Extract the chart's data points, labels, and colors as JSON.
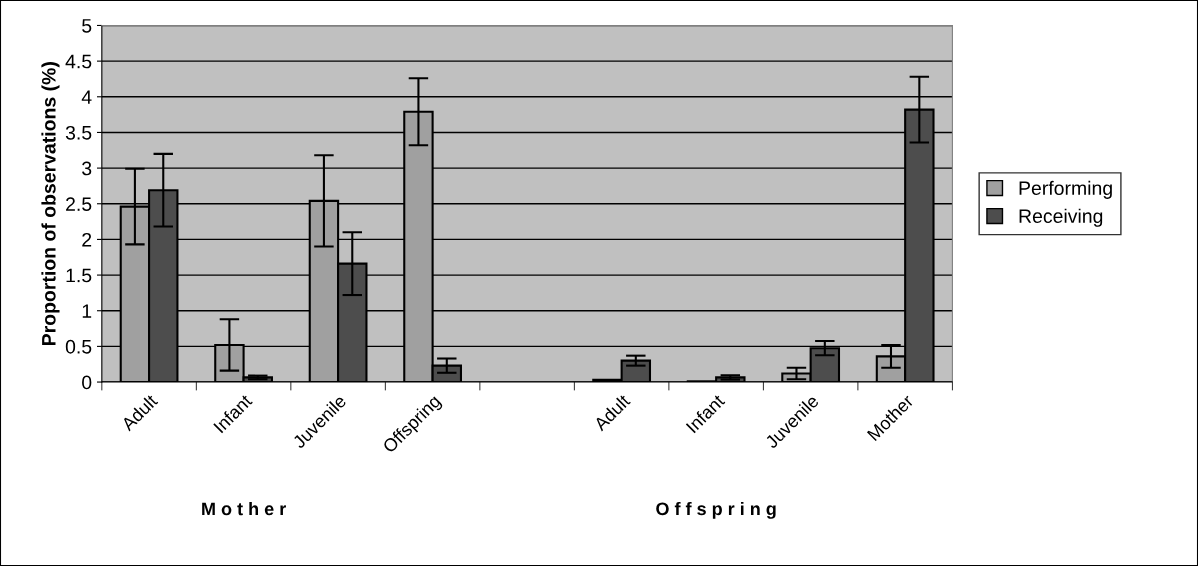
{
  "chart_data": {
    "type": "bar",
    "ylabel": "Proportion of observations (%)",
    "categories": [
      "Adult",
      "Infant",
      "Juvenile",
      "Offspring",
      null,
      "Adult",
      "Infant",
      "Juvenile",
      "Mother"
    ],
    "series": [
      {
        "name": "Performing",
        "color": "#a0a0a0",
        "values": [
          2.46,
          0.52,
          2.54,
          3.79,
          null,
          0.03,
          0.01,
          0.12,
          0.36
        ],
        "errors": [
          0.53,
          0.36,
          0.64,
          0.47,
          null,
          null,
          null,
          0.08,
          0.16
        ]
      },
      {
        "name": "Receiving",
        "color": "#4d4d4d",
        "values": [
          2.69,
          0.065,
          1.66,
          0.23,
          null,
          0.3,
          0.065,
          0.475,
          3.82
        ],
        "errors": [
          0.51,
          0.025,
          0.44,
          0.1,
          null,
          0.07,
          0.03,
          0.1,
          0.46
        ]
      }
    ],
    "ylim": [
      0,
      5
    ],
    "yticks": [
      0,
      0.5,
      1,
      1.5,
      2,
      2.5,
      3,
      3.5,
      4,
      4.5,
      5
    ],
    "grid": "y",
    "legend": "right",
    "annotations": [
      "M o t h e r",
      "O f f s p r i n g"
    ]
  }
}
